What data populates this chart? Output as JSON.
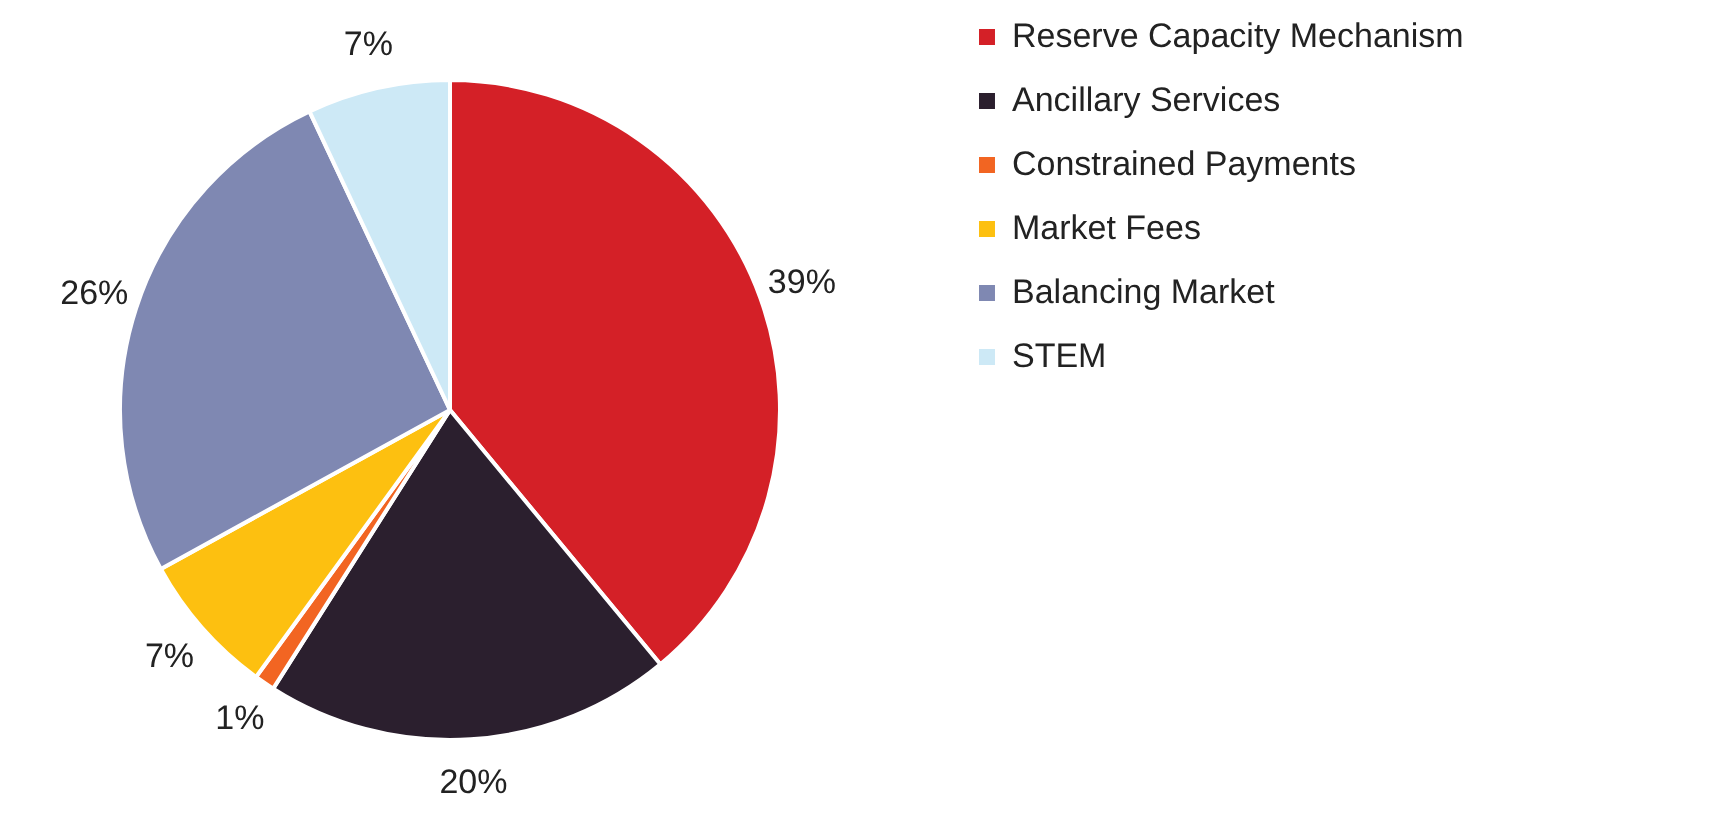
{
  "chart_data": {
    "type": "pie",
    "categories": [
      "Reserve Capacity Mechanism",
      "Ancillary Services",
      "Constrained Payments",
      "Market Fees",
      "Balancing Market",
      "STEM"
    ],
    "values": [
      39,
      20,
      1,
      7,
      26,
      7
    ],
    "value_labels": [
      "39%",
      "20%",
      "1%",
      "7%",
      "26%",
      "7%"
    ],
    "colors": [
      "#d42027",
      "#2b1f2e",
      "#f26522",
      "#fdc010",
      "#7f88b2",
      "#cde9f6"
    ],
    "legend": "right"
  }
}
